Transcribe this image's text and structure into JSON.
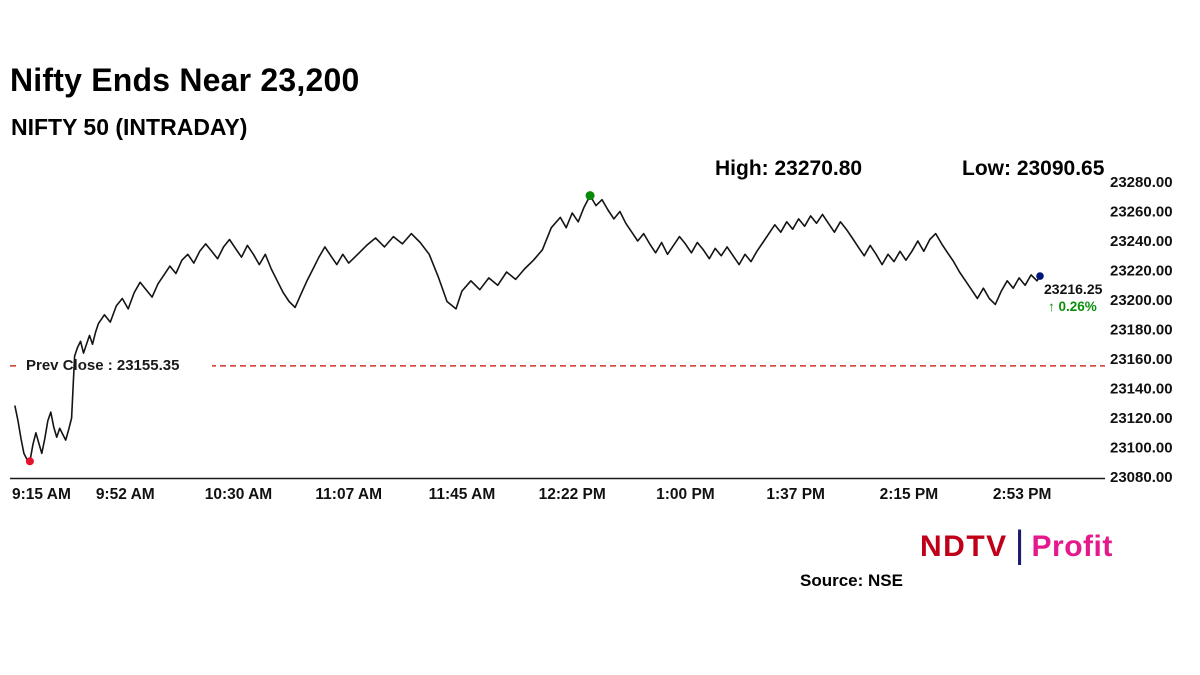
{
  "footer": {
    "source_label": "Source: NSE",
    "logo": {
      "ndtv": "NDTV",
      "divider": "|",
      "profit": "Profit"
    }
  },
  "chart_data": {
    "type": "line",
    "title": "Nifty Ends Near 23,200",
    "subtitle": "NIFTY 50 (INTRADAY)",
    "high": 23270.8,
    "low": 23090.65,
    "high_label": "High: 23270.80",
    "low_label": "Low: 23090.65",
    "prev_close": 23155.35,
    "prev_close_label": "Prev Close : 23155.35",
    "last_price": 23216.25,
    "last_price_label": "23216.25",
    "change_label": "↑ 0.26%",
    "ylim": [
      23080,
      23280
    ],
    "xlim_minutes": [
      0,
      344
    ],
    "grid": false,
    "legend": "none",
    "y_ticks": [
      {
        "value": 23280,
        "label": "23280.00"
      },
      {
        "value": 23260,
        "label": "23260.00"
      },
      {
        "value": 23240,
        "label": "23240.00"
      },
      {
        "value": 23220,
        "label": "23220.00"
      },
      {
        "value": 23200,
        "label": "23200.00"
      },
      {
        "value": 23180,
        "label": "23180.00"
      },
      {
        "value": 23160,
        "label": "23160.00"
      },
      {
        "value": 23140,
        "label": "23140.00"
      },
      {
        "value": 23120,
        "label": "23120.00"
      },
      {
        "value": 23100,
        "label": "23100.00"
      },
      {
        "value": 23080,
        "label": "23080.00"
      }
    ],
    "x_ticks": [
      {
        "m": 0,
        "label": "9:15 AM"
      },
      {
        "m": 37,
        "label": "9:52 AM"
      },
      {
        "m": 75,
        "label": "10:30 AM"
      },
      {
        "m": 112,
        "label": "11:07 AM"
      },
      {
        "m": 150,
        "label": "11:45 AM"
      },
      {
        "m": 187,
        "label": "12:22 PM"
      },
      {
        "m": 225,
        "label": "1:00 PM"
      },
      {
        "m": 262,
        "label": "1:37 PM"
      },
      {
        "m": 300,
        "label": "2:15 PM"
      },
      {
        "m": 338,
        "label": "2:53 PM"
      }
    ],
    "colors": {
      "line": "#141414",
      "prev_close": "#d0342c",
      "up": "#0a8f0a",
      "dot_low": "#e8112d",
      "dot_high": "#0a8a0a",
      "dot_last": "#00147a",
      "axis": "#1a1a1a",
      "text": "#111111"
    },
    "series": [
      {
        "name": "NIFTY 50 (INTRADAY)",
        "points": [
          [
            0,
            23128
          ],
          [
            1,
            23118
          ],
          [
            2,
            23106
          ],
          [
            3,
            23096
          ],
          [
            4,
            23092
          ],
          [
            5,
            23090.65
          ],
          [
            6,
            23102
          ],
          [
            7,
            23110
          ],
          [
            8,
            23103
          ],
          [
            9,
            23096
          ],
          [
            10,
            23106
          ],
          [
            11,
            23118
          ],
          [
            12,
            23124
          ],
          [
            13,
            23114
          ],
          [
            14,
            23107
          ],
          [
            15,
            23113
          ],
          [
            16,
            23109
          ],
          [
            17,
            23105
          ],
          [
            18,
            23112
          ],
          [
            19,
            23120
          ],
          [
            20,
            23162
          ],
          [
            21,
            23168
          ],
          [
            22,
            23172
          ],
          [
            23,
            23164
          ],
          [
            24,
            23170
          ],
          [
            25,
            23176
          ],
          [
            26,
            23170
          ],
          [
            27,
            23178
          ],
          [
            28,
            23184
          ],
          [
            30,
            23190
          ],
          [
            32,
            23185
          ],
          [
            34,
            23196
          ],
          [
            36,
            23201
          ],
          [
            38,
            23194
          ],
          [
            40,
            23205
          ],
          [
            42,
            23212
          ],
          [
            44,
            23207
          ],
          [
            46,
            23202
          ],
          [
            48,
            23211
          ],
          [
            50,
            23217
          ],
          [
            52,
            23223
          ],
          [
            54,
            23218
          ],
          [
            56,
            23227
          ],
          [
            58,
            23231
          ],
          [
            60,
            23225
          ],
          [
            62,
            23233
          ],
          [
            64,
            23238
          ],
          [
            66,
            23233
          ],
          [
            68,
            23228
          ],
          [
            70,
            23236
          ],
          [
            72,
            23241
          ],
          [
            74,
            23235
          ],
          [
            76,
            23229
          ],
          [
            78,
            23237
          ],
          [
            80,
            23231
          ],
          [
            82,
            23224
          ],
          [
            84,
            23231
          ],
          [
            86,
            23221
          ],
          [
            88,
            23213
          ],
          [
            90,
            23205
          ],
          [
            92,
            23199
          ],
          [
            94,
            23195
          ],
          [
            96,
            23204
          ],
          [
            98,
            23213
          ],
          [
            100,
            23221
          ],
          [
            102,
            23229
          ],
          [
            104,
            23236
          ],
          [
            106,
            23230
          ],
          [
            108,
            23224
          ],
          [
            110,
            23231
          ],
          [
            112,
            23225
          ],
          [
            115,
            23231
          ],
          [
            118,
            23237
          ],
          [
            121,
            23242
          ],
          [
            124,
            23236
          ],
          [
            127,
            23243
          ],
          [
            130,
            23238
          ],
          [
            133,
            23245
          ],
          [
            136,
            23239
          ],
          [
            139,
            23231
          ],
          [
            142,
            23216
          ],
          [
            145,
            23199
          ],
          [
            148,
            23194
          ],
          [
            150,
            23206
          ],
          [
            153,
            23213
          ],
          [
            156,
            23207
          ],
          [
            159,
            23215
          ],
          [
            162,
            23210
          ],
          [
            165,
            23219
          ],
          [
            168,
            23214
          ],
          [
            171,
            23221
          ],
          [
            174,
            23227
          ],
          [
            177,
            23234
          ],
          [
            180,
            23249
          ],
          [
            183,
            23256
          ],
          [
            185,
            23249
          ],
          [
            187,
            23259
          ],
          [
            189,
            23253
          ],
          [
            191,
            23263
          ],
          [
            193,
            23270.8
          ],
          [
            195,
            23264
          ],
          [
            197,
            23268
          ],
          [
            199,
            23261
          ],
          [
            201,
            23255
          ],
          [
            203,
            23260
          ],
          [
            205,
            23252
          ],
          [
            207,
            23246
          ],
          [
            209,
            23240
          ],
          [
            211,
            23245
          ],
          [
            213,
            23238
          ],
          [
            215,
            23232
          ],
          [
            217,
            23239
          ],
          [
            219,
            23231
          ],
          [
            221,
            23237
          ],
          [
            223,
            23243
          ],
          [
            225,
            23238
          ],
          [
            227,
            23232
          ],
          [
            229,
            23239
          ],
          [
            231,
            23234
          ],
          [
            233,
            23228
          ],
          [
            235,
            23235
          ],
          [
            237,
            23230
          ],
          [
            239,
            23236
          ],
          [
            241,
            23230
          ],
          [
            243,
            23224
          ],
          [
            245,
            23231
          ],
          [
            247,
            23226
          ],
          [
            249,
            23233
          ],
          [
            251,
            23239
          ],
          [
            253,
            23245
          ],
          [
            255,
            23251
          ],
          [
            257,
            23246
          ],
          [
            259,
            23253
          ],
          [
            261,
            23248
          ],
          [
            263,
            23255
          ],
          [
            265,
            23250
          ],
          [
            267,
            23257
          ],
          [
            269,
            23252
          ],
          [
            271,
            23258
          ],
          [
            273,
            23252
          ],
          [
            275,
            23246
          ],
          [
            277,
            23253
          ],
          [
            279,
            23248
          ],
          [
            281,
            23242
          ],
          [
            283,
            23236
          ],
          [
            285,
            23230
          ],
          [
            287,
            23237
          ],
          [
            289,
            23231
          ],
          [
            291,
            23224
          ],
          [
            293,
            23231
          ],
          [
            295,
            23226
          ],
          [
            297,
            23233
          ],
          [
            299,
            23227
          ],
          [
            301,
            23233
          ],
          [
            303,
            23240
          ],
          [
            305,
            23233
          ],
          [
            307,
            23241
          ],
          [
            309,
            23245
          ],
          [
            311,
            23238
          ],
          [
            313,
            23232
          ],
          [
            315,
            23226
          ],
          [
            317,
            23219
          ],
          [
            319,
            23213
          ],
          [
            321,
            23207
          ],
          [
            323,
            23201
          ],
          [
            325,
            23208
          ],
          [
            327,
            23201
          ],
          [
            329,
            23197
          ],
          [
            331,
            23206
          ],
          [
            333,
            23213
          ],
          [
            335,
            23208
          ],
          [
            337,
            23215
          ],
          [
            339,
            23210
          ],
          [
            341,
            23217
          ],
          [
            343,
            23213
          ],
          [
            344,
            23216.25
          ]
        ]
      }
    ]
  }
}
